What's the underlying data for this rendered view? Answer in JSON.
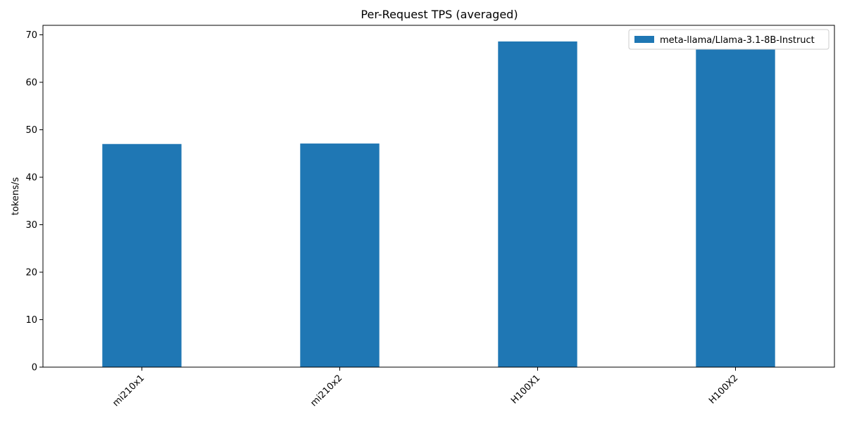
{
  "chart_data": {
    "type": "bar",
    "title": "Per-Request TPS (averaged)",
    "xlabel": "",
    "ylabel": "tokens/s",
    "categories": [
      "mi210x1",
      "mi210x2",
      "H100X1",
      "H100X2"
    ],
    "series": [
      {
        "name": "meta-llama/Llama-3.1-8B-Instruct",
        "values": [
          47.0,
          47.1,
          68.6,
          66.9
        ],
        "color": "#1f77b4"
      }
    ],
    "ylim": [
      0,
      72
    ],
    "yticks": [
      0,
      10,
      20,
      30,
      40,
      50,
      60,
      70
    ],
    "grid": false,
    "legend_position": "top-right"
  }
}
